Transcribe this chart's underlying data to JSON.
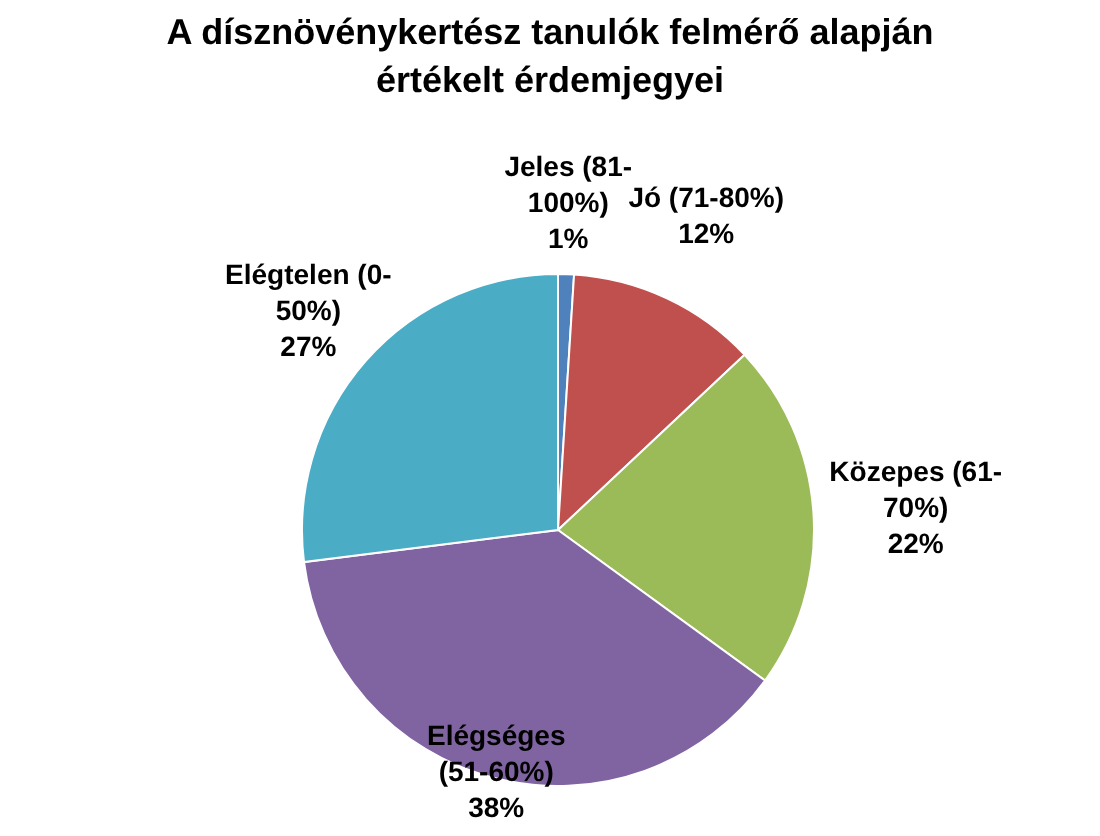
{
  "chart_data": {
    "type": "pie",
    "title": "A dísznövénykertész tanulók felmérő alapján értékelt érdemjegyei",
    "categories": [
      "Jeles (81-100%)",
      "Jó (71-80%)",
      "Közepes (61-70%)",
      "Elégséges (51-60%)",
      "Elégtelen (0-50%)"
    ],
    "values": [
      1,
      12,
      22,
      38,
      27
    ],
    "value_labels": [
      "1%",
      "12%",
      "22%",
      "38%",
      "27%"
    ],
    "colors": [
      "#4f81bd",
      "#c0504d",
      "#9bbb59",
      "#8064a2",
      "#4bacc6"
    ]
  }
}
